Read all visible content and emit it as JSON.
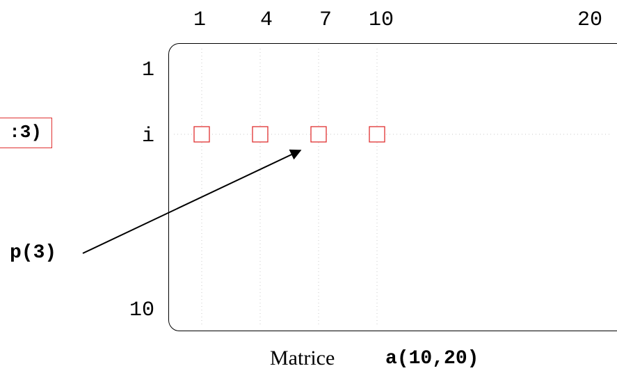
{
  "matrix": {
    "col_labels": [
      "1",
      "4",
      "7",
      "10",
      "20"
    ],
    "row_labels": [
      "1",
      "i",
      "10"
    ],
    "caption_text": "Matrice",
    "caption_code": "a(10,20)"
  },
  "pointer": {
    "label": "p(3)",
    "target_column": "7"
  },
  "vector_box": {
    "text": ":3)"
  },
  "colors": {
    "element": "#e03030",
    "grid": "#c8c8c8",
    "stroke": "#000000"
  }
}
